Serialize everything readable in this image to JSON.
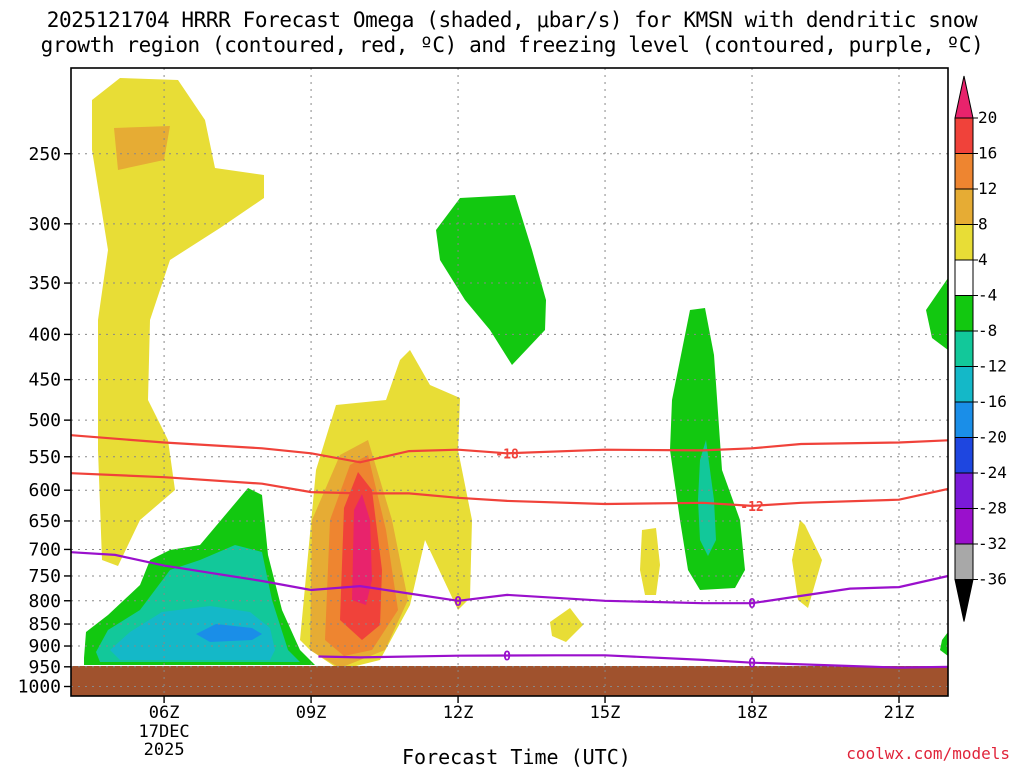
{
  "title": {
    "line1": "2025121704 HRRR Forecast Omega (shaded, μbar/s) for KMSN with dendritic snow",
    "line2": "growth region (contoured, red, ºC) and freezing level (contoured, purple, ºC)"
  },
  "credit": "coolwx.com/models",
  "chart_data": {
    "type": "heatmap",
    "xlabel": "Forecast Time (UTC)",
    "ylabel": "",
    "x_ticks": [
      {
        "label": "06Z",
        "hour": 6
      },
      {
        "label": "09Z",
        "hour": 9
      },
      {
        "label": "12Z",
        "hour": 12
      },
      {
        "label": "15Z",
        "hour": 15
      },
      {
        "label": "18Z",
        "hour": 18
      },
      {
        "label": "21Z",
        "hour": 21
      }
    ],
    "x_date_label": [
      "17DEC",
      "2025"
    ],
    "xlim": [
      4.1,
      22.0
    ],
    "y_ticks": [
      250,
      300,
      350,
      400,
      450,
      500,
      550,
      600,
      650,
      700,
      750,
      800,
      850,
      900,
      950,
      1000
    ],
    "ylim_pressure_hPa": [
      1025,
      200
    ],
    "y_scale": "log",
    "grid": true,
    "colorbar": {
      "units": "μbar/s",
      "labels": [
        "20",
        "16",
        "12",
        "8",
        "4",
        "-4",
        "-8",
        "-12",
        "-16",
        "-20",
        "-24",
        "-28",
        "-32",
        "-36"
      ],
      "colors": [
        "#e8236c",
        "#f0423a",
        "#ee8530",
        "#e6ac34",
        "#e8dd36",
        "#ffffff",
        "#12c810",
        "#12c89a",
        "#14b8c8",
        "#1a8ee8",
        "#1e46e0",
        "#7a1ad8",
        "#9a10cc",
        "#a8a8a8",
        "#000000"
      ]
    },
    "contours": [
      {
        "name": "-18",
        "color": "#f0423a",
        "points": [
          [
            4.1,
            520
          ],
          [
            6,
            530
          ],
          [
            8,
            538
          ],
          [
            9,
            545
          ],
          [
            10,
            558
          ],
          [
            11,
            542
          ],
          [
            12,
            540
          ],
          [
            13,
            545
          ],
          [
            15,
            540
          ],
          [
            17,
            541
          ],
          [
            18,
            538
          ],
          [
            19,
            532
          ],
          [
            21,
            530
          ],
          [
            22,
            527
          ]
        ]
      },
      {
        "name": "-12",
        "color": "#f0423a",
        "points": [
          [
            4.1,
            574
          ],
          [
            6,
            580
          ],
          [
            8,
            590
          ],
          [
            9,
            603
          ],
          [
            10,
            605
          ],
          [
            11,
            605
          ],
          [
            12,
            612
          ],
          [
            13,
            617
          ],
          [
            15,
            622
          ],
          [
            17,
            620
          ],
          [
            18,
            625
          ],
          [
            19,
            620
          ],
          [
            21,
            615
          ],
          [
            22,
            598
          ]
        ]
      },
      {
        "name": "0",
        "color": "#9a10cc",
        "points": [
          [
            4.1,
            705
          ],
          [
            5,
            710
          ],
          [
            6,
            730
          ],
          [
            8,
            760
          ],
          [
            9,
            778
          ],
          [
            10,
            770
          ],
          [
            11,
            785
          ],
          [
            12,
            800
          ],
          [
            13,
            788
          ],
          [
            15,
            800
          ],
          [
            17,
            805
          ],
          [
            18,
            805
          ],
          [
            19,
            790
          ],
          [
            20,
            775
          ],
          [
            21,
            772
          ],
          [
            22,
            750
          ]
        ]
      },
      {
        "name": "0",
        "color": "#9a10cc",
        "points": [
          [
            9.15,
            925
          ],
          [
            10,
            927
          ],
          [
            12,
            923
          ],
          [
            14,
            922
          ],
          [
            15,
            922
          ],
          [
            17,
            933
          ],
          [
            18,
            940
          ],
          [
            20,
            948
          ],
          [
            21,
            952
          ],
          [
            22,
            950
          ]
        ]
      }
    ]
  }
}
